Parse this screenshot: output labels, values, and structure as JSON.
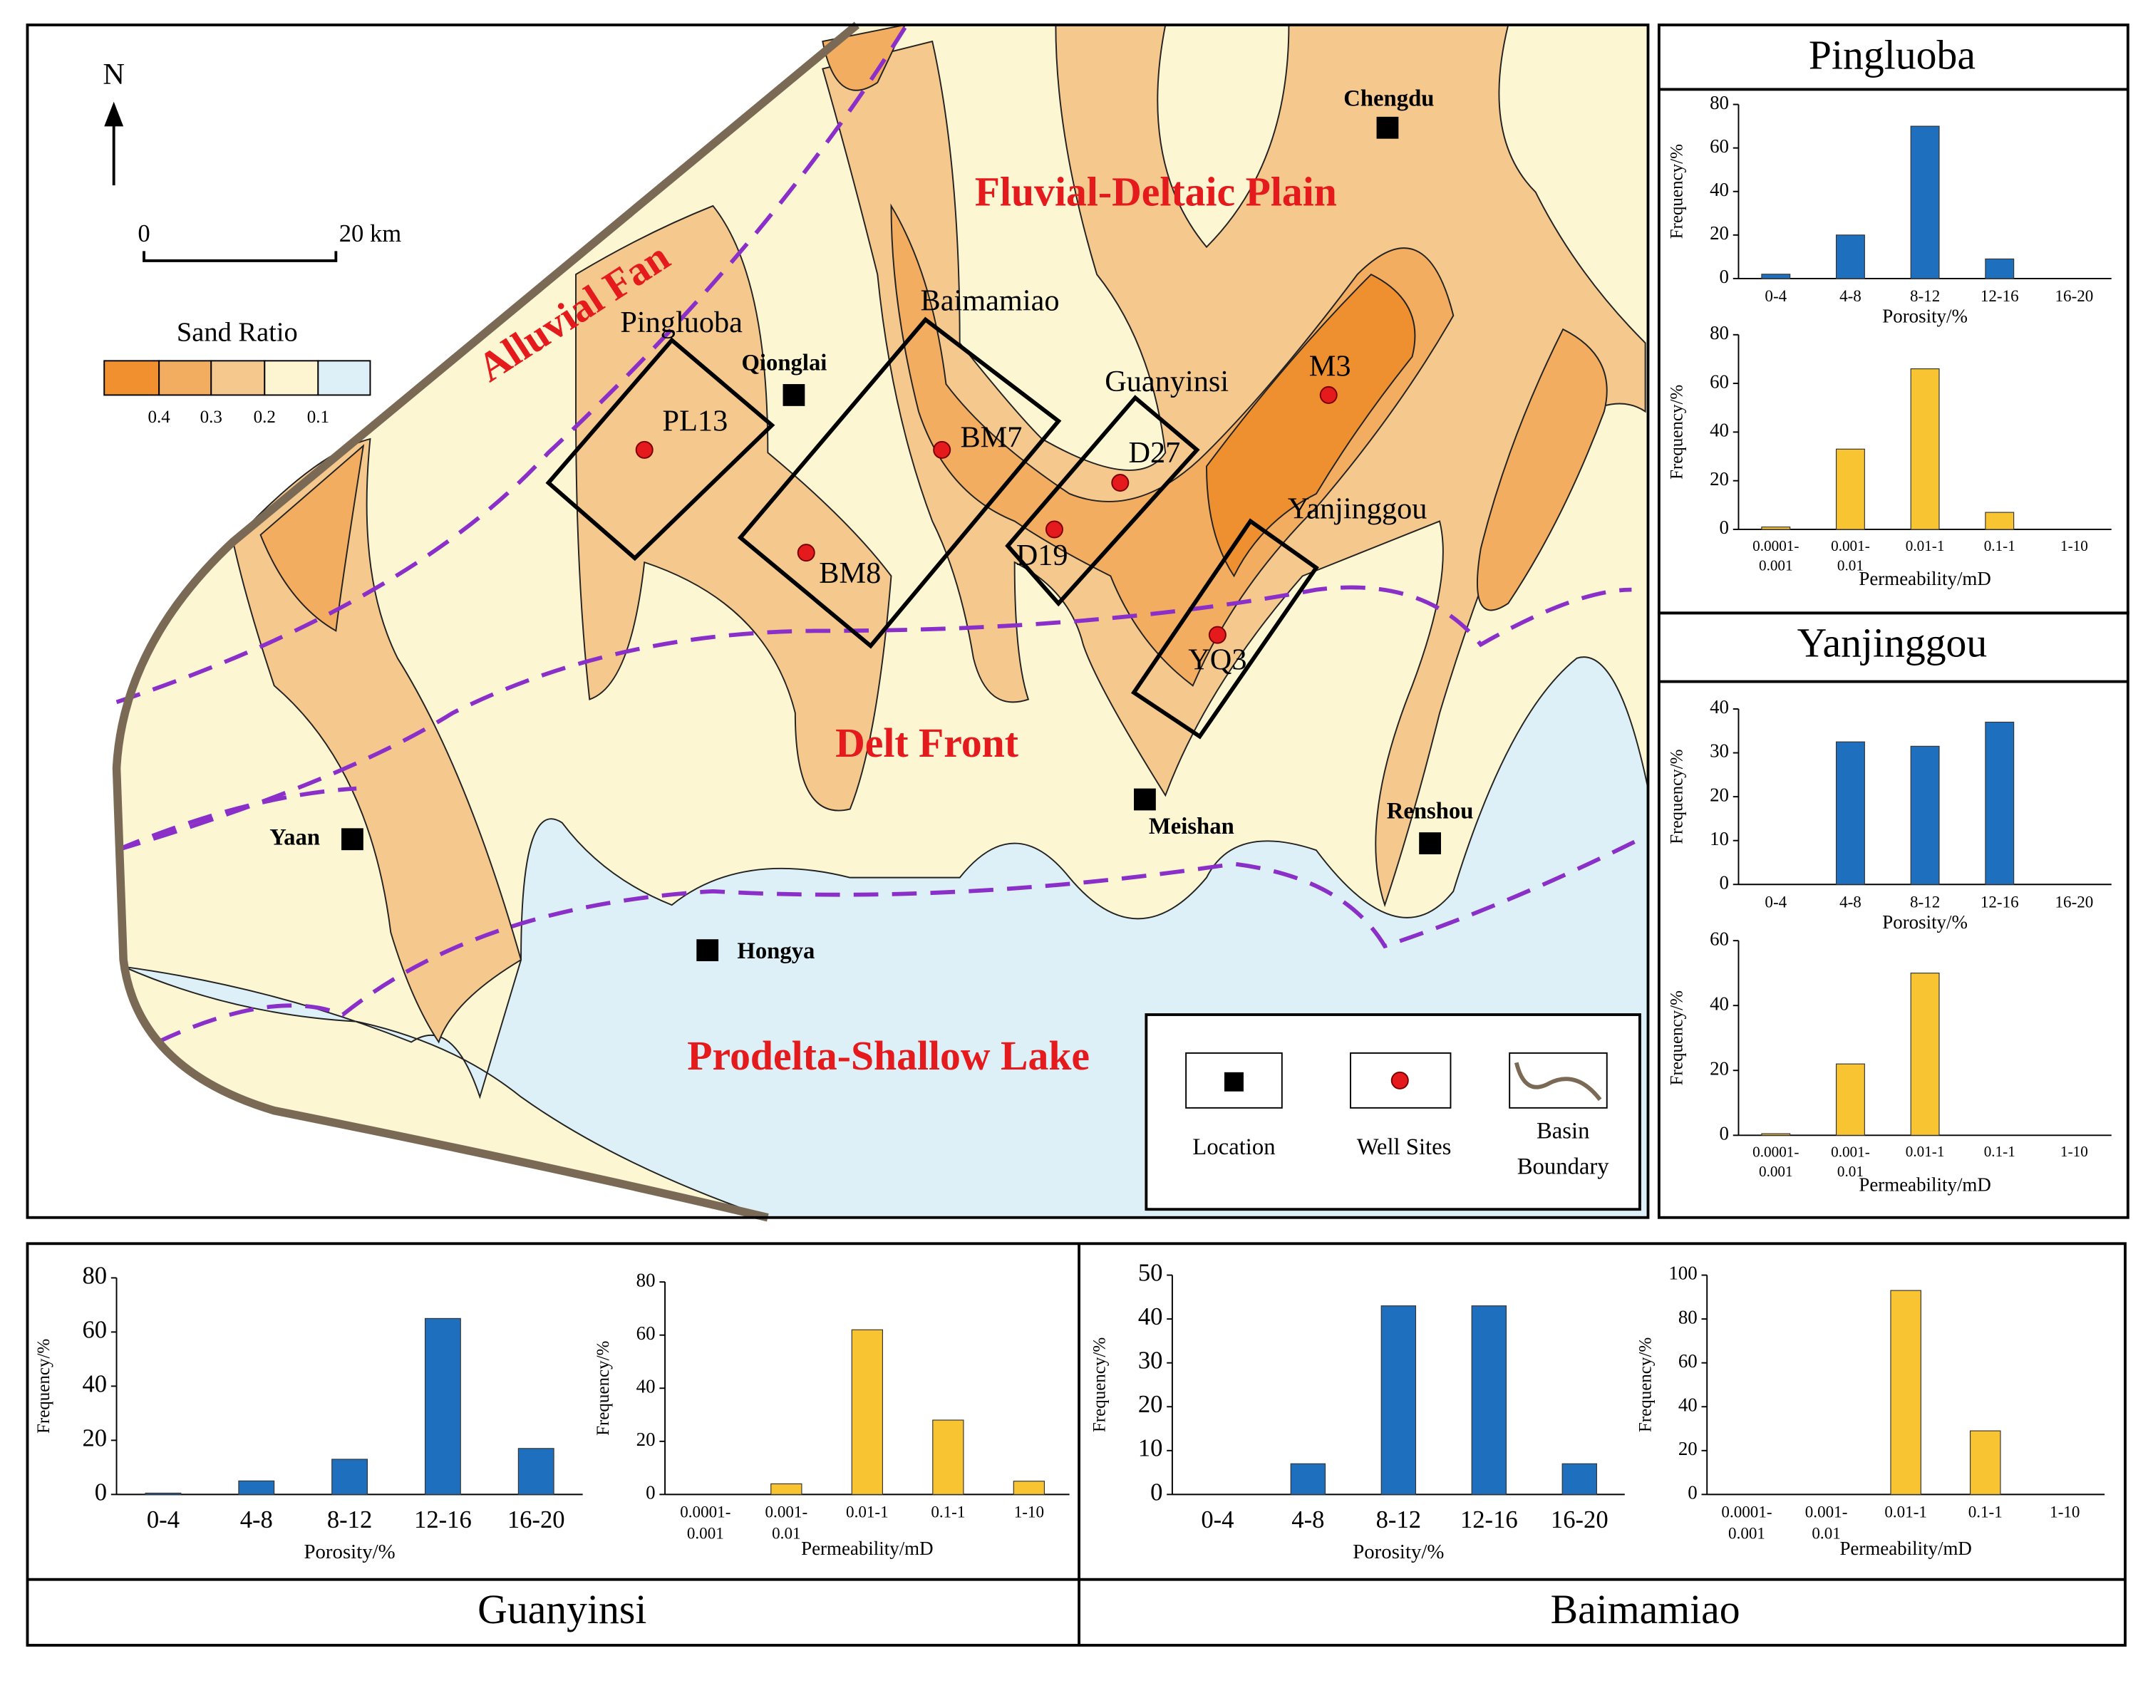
{
  "map": {
    "north": "N",
    "scale": [
      "0",
      "20 km"
    ],
    "sand_ratio": {
      "title": "Sand Ratio",
      "labels": [
        "0.4",
        "0.3",
        "0.2",
        "0.1"
      ]
    },
    "regions": [
      "Fluvial-Deltaic Plain",
      "Alluvial Fan",
      "Delt Front",
      "Prodelta-Shallow Lake"
    ],
    "cities": [
      "Chengdu",
      "Qionglai",
      "Yaan",
      "Hongya",
      "Meishan",
      "Renshou"
    ],
    "areas": [
      "Pingluoba",
      "Baimamiao",
      "Guanyinsi",
      "Yanjinggou"
    ],
    "wells": [
      "PL13",
      "BM7",
      "BM8",
      "D27",
      "D19",
      "M3",
      "YQ3"
    ],
    "legend": [
      "Location",
      "Well Sites",
      "Basin Boundary"
    ]
  },
  "panels": [
    "Pingluoba",
    "Yanjinggou",
    "Guanyinsi",
    "Baimamiao"
  ],
  "chart_data": [
    {
      "type": "bar",
      "categories": [
        "0-4",
        "4-8",
        "8-12",
        "12-16",
        "16-20"
      ],
      "values": [
        2,
        20,
        70,
        9,
        0
      ],
      "color": "#1f6fbf",
      "ylim": [
        0,
        80
      ],
      "yticks": [
        0,
        20,
        40,
        60,
        80
      ],
      "ylabel": "Frequency/%",
      "xlabel": "Porosity/%"
    },
    {
      "type": "bar",
      "categories": [
        "0.0001-0.001",
        "0.001-0.01",
        "0.01-1",
        "0.1-1",
        "1-10"
      ],
      "values": [
        1,
        33,
        66,
        7,
        0
      ],
      "color": "#f8c432",
      "ylim": [
        0,
        80
      ],
      "yticks": [
        0,
        20,
        40,
        60,
        80
      ],
      "ylabel": "Frequency/%",
      "xlabel": "Permeability/mD"
    },
    {
      "type": "bar",
      "categories": [
        "0-4",
        "4-8",
        "8-12",
        "12-16",
        "16-20"
      ],
      "values": [
        0,
        32.5,
        31.5,
        37,
        0
      ],
      "color": "#1f6fbf",
      "ylim": [
        0,
        40
      ],
      "yticks": [
        0,
        10,
        20,
        30,
        40
      ],
      "ylabel": "Frequency/%",
      "xlabel": "Porosity/%"
    },
    {
      "type": "bar",
      "categories": [
        "0.0001-0.001",
        "0.001-0.01",
        "0.01-1",
        "0.1-1",
        "1-10"
      ],
      "values": [
        0.5,
        22,
        50,
        0,
        0
      ],
      "color": "#f8c432",
      "ylim": [
        0,
        60
      ],
      "yticks": [
        0,
        20,
        40,
        60
      ],
      "ylabel": "Frequency/%",
      "xlabel": "Permeability/mD"
    },
    {
      "type": "bar",
      "categories": [
        "0-4",
        "4-8",
        "8-12",
        "12-16",
        "16-20"
      ],
      "values": [
        0.5,
        5,
        13,
        65,
        17
      ],
      "color": "#1f6fbf",
      "ylim": [
        0,
        80
      ],
      "yticks": [
        0,
        20,
        40,
        60,
        80
      ],
      "ylabel": "Frequency/%",
      "xlabel": "Porosity/%"
    },
    {
      "type": "bar",
      "categories": [
        "0.0001-0.001",
        "0.001-0.01",
        "0.01-1",
        "0.1-1",
        "1-10"
      ],
      "values": [
        0,
        4,
        62,
        28,
        5
      ],
      "color": "#f8c432",
      "ylim": [
        0,
        80
      ],
      "yticks": [
        0,
        20,
        40,
        60,
        80
      ],
      "ylabel": "Frequency/%",
      "xlabel": "Permeability/mD"
    },
    {
      "type": "bar",
      "categories": [
        "0-4",
        "4-8",
        "8-12",
        "12-16",
        "16-20"
      ],
      "values": [
        0,
        7,
        43,
        43,
        7
      ],
      "color": "#1f6fbf",
      "ylim": [
        0,
        50
      ],
      "yticks": [
        0,
        10,
        20,
        30,
        40,
        50
      ],
      "ylabel": "Frequency/%",
      "xlabel": "Porosity/%"
    },
    {
      "type": "bar",
      "categories": [
        "0.0001-0.001",
        "0.001-0.01",
        "0.01-1",
        "0.1-1",
        "1-10"
      ],
      "values": [
        0,
        0,
        93,
        29,
        0
      ],
      "color": "#f8c432",
      "ylim": [
        0,
        100
      ],
      "yticks": [
        0,
        20,
        40,
        60,
        80,
        100
      ],
      "ylabel": "Frequency/%",
      "xlabel": "Permeability/mD"
    }
  ]
}
